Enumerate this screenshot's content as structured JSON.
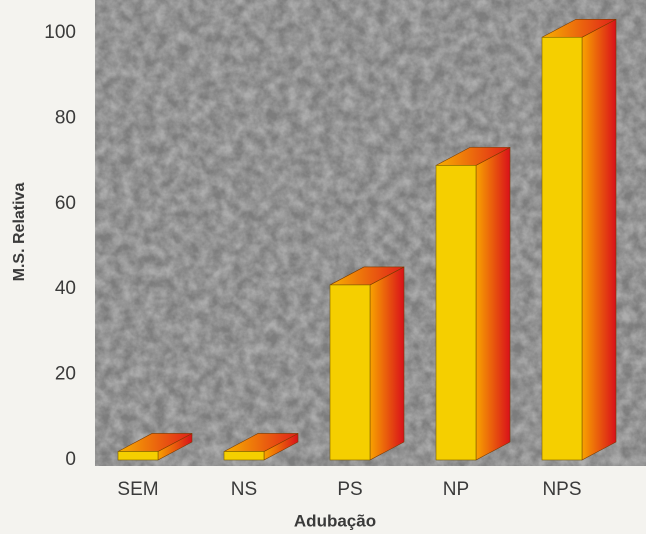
{
  "chart_data": {
    "type": "bar3d",
    "x_label": "Adubação",
    "y_label": "M.S. Relativa",
    "categories": [
      "SEM",
      "NS",
      "PS",
      "NP",
      "NPS"
    ],
    "values": [
      2,
      2,
      41,
      69,
      99
    ],
    "color": "#f5cf00",
    "ylim": [
      0,
      100
    ],
    "yticks": [
      0,
      20,
      40,
      60,
      80,
      100
    ]
  }
}
